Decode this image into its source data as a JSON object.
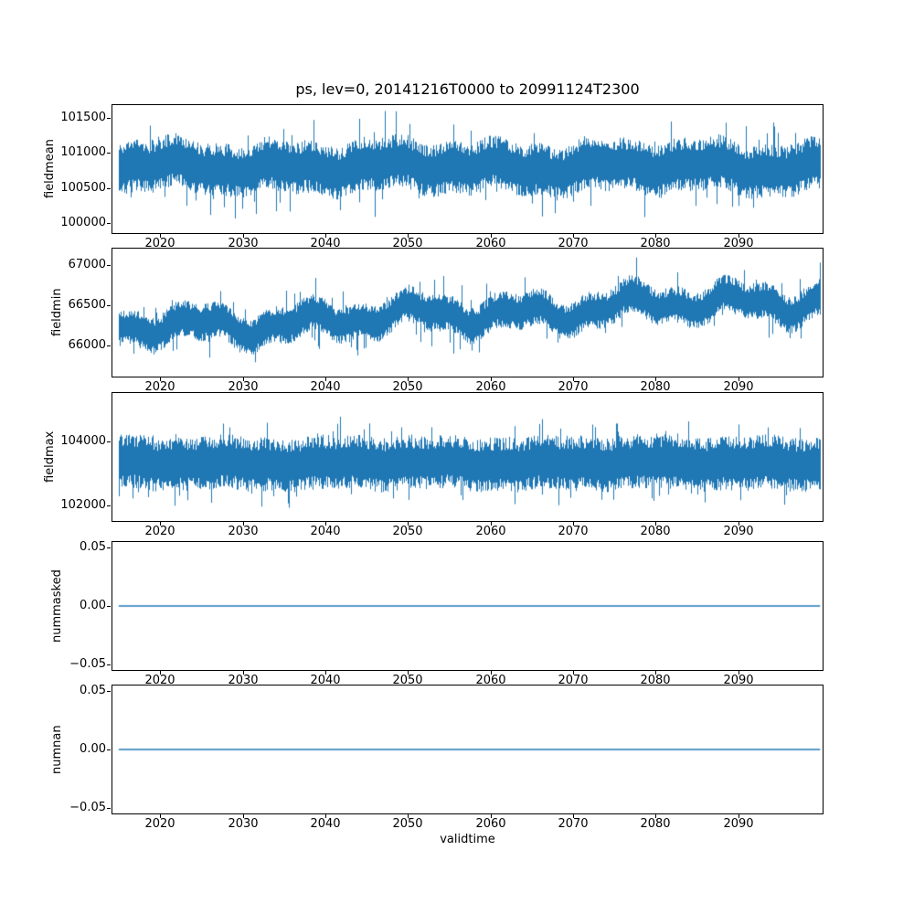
{
  "figure": {
    "background": "#ffffff"
  },
  "chart_data": {
    "type": "line",
    "title": "ps, lev=0, 20141216T0000 to 20991124T2300",
    "xlabel": "validtime",
    "line_color": "#1f77b4",
    "x_start": 2014.96,
    "x_end": 2099.9,
    "xlim": [
      2014.2,
      2100.2
    ],
    "xticks": [
      2020,
      2030,
      2040,
      2050,
      2060,
      2070,
      2080,
      2090
    ],
    "xtick_labels": [
      "2020",
      "2030",
      "2040",
      "2050",
      "2060",
      "2070",
      "2080",
      "2090"
    ],
    "legend": "none",
    "grid": false,
    "subplots": [
      {
        "ylabel": "fieldmean",
        "ylim": [
          99860,
          101680
        ],
        "yticks": [
          100000,
          100500,
          101000,
          101500
        ],
        "ytick_labels": [
          "100000",
          "100500",
          "101000",
          "101500"
        ],
        "series": {
          "kind": "noise",
          "description": "dense high-frequency time series, stationary noise",
          "center_start": 100800,
          "center_end": 100800,
          "band": 380,
          "spike": 420,
          "spike_prob": 0.05,
          "wobble": 60,
          "approx_min": 99950,
          "approx_max": 101660,
          "seed": 11
        }
      },
      {
        "ylabel": "fieldmin",
        "ylim": [
          65620,
          67200
        ],
        "yticks": [
          66000,
          66500,
          67000
        ],
        "ytick_labels": [
          "66000",
          "66500",
          "67000"
        ],
        "series": {
          "kind": "noise",
          "description": "dense high-frequency time series with slow upward trend",
          "center_start": 66200,
          "center_end": 66580,
          "band": 230,
          "spike": 260,
          "spike_prob": 0.05,
          "wobble": 90,
          "approx_min": 65700,
          "approx_max": 67080,
          "seed": 22
        }
      },
      {
        "ylabel": "fieldmax",
        "ylim": [
          101500,
          105500
        ],
        "yticks": [
          102000,
          104000
        ],
        "ytick_labels": [
          "102000",
          "104000"
        ],
        "series": {
          "kind": "noise",
          "description": "dense high-frequency time series, stationary noise",
          "center_start": 103300,
          "center_end": 103300,
          "band": 850,
          "spike": 600,
          "spike_prob": 0.06,
          "wobble": 50,
          "approx_min": 101600,
          "approx_max": 105200,
          "seed": 33
        }
      },
      {
        "ylabel": "nummasked",
        "ylim": [
          -0.055,
          0.055
        ],
        "yticks": [
          -0.05,
          0,
          0.05
        ],
        "ytick_labels": [
          "−0.05",
          "0.00",
          "0.05"
        ],
        "series": {
          "kind": "constant",
          "value": 0,
          "description": "flat line at zero"
        }
      },
      {
        "ylabel": "numnan",
        "ylim": [
          -0.055,
          0.055
        ],
        "yticks": [
          -0.05,
          0,
          0.05
        ],
        "ytick_labels": [
          "−0.05",
          "0.00",
          "0.05"
        ],
        "series": {
          "kind": "constant",
          "value": 0,
          "description": "flat line at zero"
        }
      }
    ]
  }
}
